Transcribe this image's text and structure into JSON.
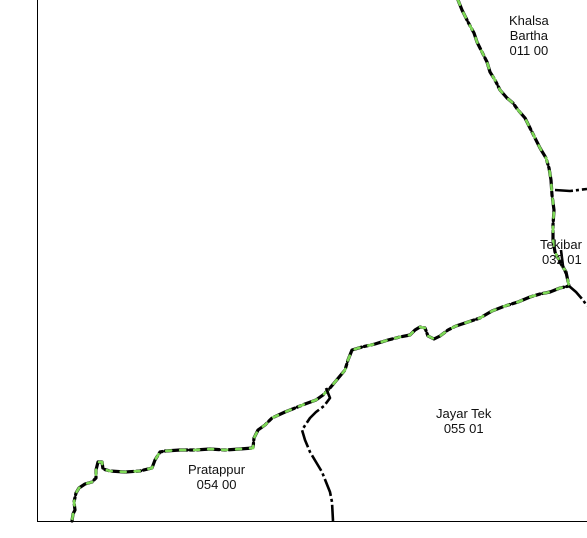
{
  "map": {
    "background": "#ffffff",
    "frame_color": "#000000",
    "boundary_color": "#000000",
    "highlight_color": "#7ed957"
  },
  "villages": [
    {
      "id": "khalsa-bartha",
      "name_line1": "Khalsa",
      "name_line2": "Bartha",
      "code": "011 00"
    },
    {
      "id": "tekibar",
      "name_line1": "Tekibar",
      "name_line2": "",
      "code": "032 01"
    },
    {
      "id": "jayar-tek",
      "name_line1": "Jayar Tek",
      "name_line2": "",
      "code": "055 01"
    },
    {
      "id": "pratappur",
      "name_line1": "Pratappur",
      "name_line2": "",
      "code": "054 00"
    }
  ]
}
